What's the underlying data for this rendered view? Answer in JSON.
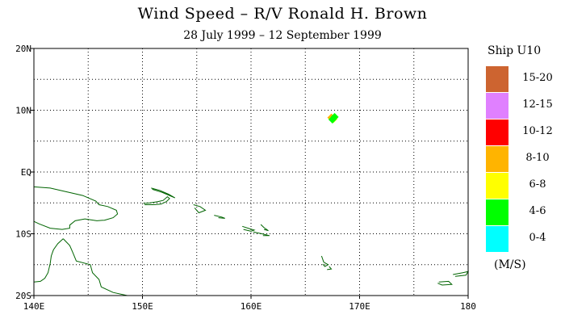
{
  "title": "Wind Speed – R/V Ronald H. Brown",
  "subtitle": "28 July 1999 – 12 September 1999",
  "map": {
    "lon_range": [
      140,
      180
    ],
    "lat_range": [
      -20,
      20
    ],
    "lon_ticks": [
      {
        "value": 140,
        "label": "140E"
      },
      {
        "value": 150,
        "label": "150E"
      },
      {
        "value": 160,
        "label": "160E"
      },
      {
        "value": 170,
        "label": "170E"
      },
      {
        "value": 180,
        "label": "180"
      }
    ],
    "lat_ticks": [
      {
        "value": 20,
        "label": "20N"
      },
      {
        "value": 10,
        "label": "10N"
      },
      {
        "value": 0,
        "label": "EQ"
      },
      {
        "value": -10,
        "label": "10S"
      },
      {
        "value": -20,
        "label": "20S"
      }
    ],
    "grid": true,
    "coastline_color": "#006400",
    "ship_observations": [
      {
        "lon": 167.4,
        "lat": 8.8,
        "color": "#ffb400"
      },
      {
        "lon": 167.6,
        "lat": 8.6,
        "color": "#ffff00"
      },
      {
        "lon": 167.7,
        "lat": 8.9,
        "color": "#00ff00"
      },
      {
        "lon": 167.5,
        "lat": 8.5,
        "color": "#00ff00"
      }
    ]
  },
  "legend": {
    "title": "Ship U10",
    "units": "(M/S)",
    "bins": [
      {
        "label": "15-20",
        "color": "#cd6430"
      },
      {
        "label": "12-15",
        "color": "#e080ff"
      },
      {
        "label": "10-12",
        "color": "#ff0000"
      },
      {
        "label": "8-10",
        "color": "#ffb400"
      },
      {
        "label": "6-8",
        "color": "#ffff00"
      },
      {
        "label": "4-6",
        "color": "#00ff00"
      },
      {
        "label": "0-4",
        "color": "#00ffff"
      }
    ]
  }
}
